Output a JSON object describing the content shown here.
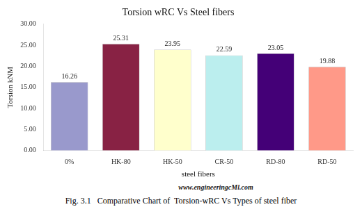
{
  "chart_data": {
    "type": "bar",
    "title": "Torsion wRC Vs Steel fibers",
    "xlabel": "steel fibers",
    "ylabel": "Torsion kNM",
    "categories": [
      "0%",
      "HK-80",
      "HK-50",
      "CR-50",
      "RD-80",
      "RD-50"
    ],
    "values": [
      16.26,
      25.31,
      23.95,
      22.59,
      23.05,
      19.88
    ],
    "colors": [
      "#9999cc",
      "#882244",
      "#ffffcc",
      "#bbeeee",
      "#440077",
      "#ff9988"
    ],
    "ylim": [
      0,
      30
    ],
    "yticks": [
      {
        "value": 0,
        "label": "0.00"
      },
      {
        "value": 5,
        "label": "5.00"
      },
      {
        "value": 10,
        "label": "10.00"
      },
      {
        "value": 15,
        "label": "15.00"
      },
      {
        "value": 20,
        "label": "20.00"
      },
      {
        "value": 25,
        "label": "25.00"
      },
      {
        "value": 30,
        "label": "30.00"
      }
    ],
    "data_labels": true,
    "grid": false,
    "annotations": [
      "www.engineeringcMl.com",
      "Fig. 3.1   Comparative Chart of  Torsion-wRC Vs Types of steel fiber"
    ]
  }
}
